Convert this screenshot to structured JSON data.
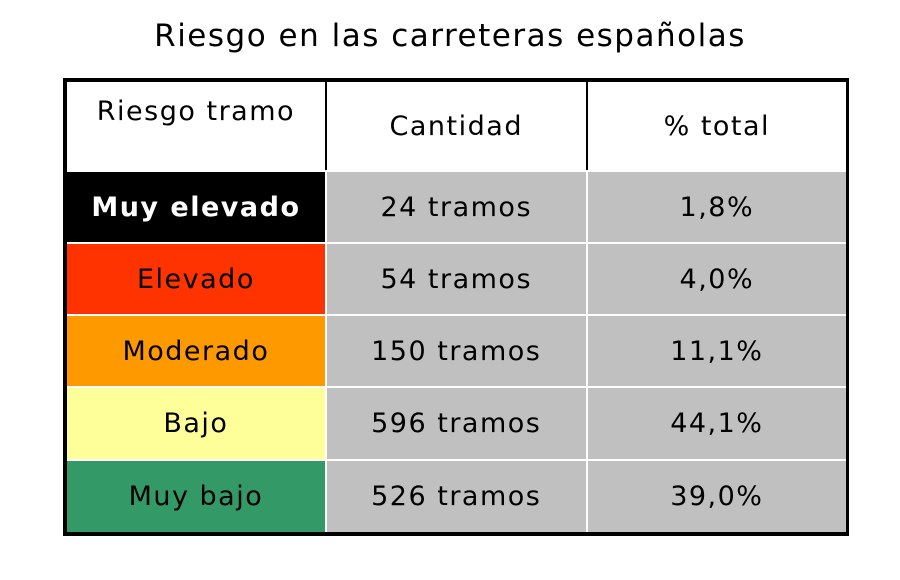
{
  "title": "Riesgo en las carreteras españolas",
  "table": {
    "header": [
      "Riesgo tramo",
      "Cantidad",
      "% total"
    ],
    "rows": [
      [
        "Muy elevado",
        "24 tramos",
        "1,8%"
      ],
      [
        "Elevado",
        "54 tramos",
        "4,0%"
      ],
      [
        "Moderado",
        "150 tramos",
        "11,1%"
      ],
      [
        "Bajo",
        "596 tramos",
        "44,1%"
      ],
      [
        "Muy bajo",
        "526 tramos",
        "39,0%"
      ]
    ]
  }
}
